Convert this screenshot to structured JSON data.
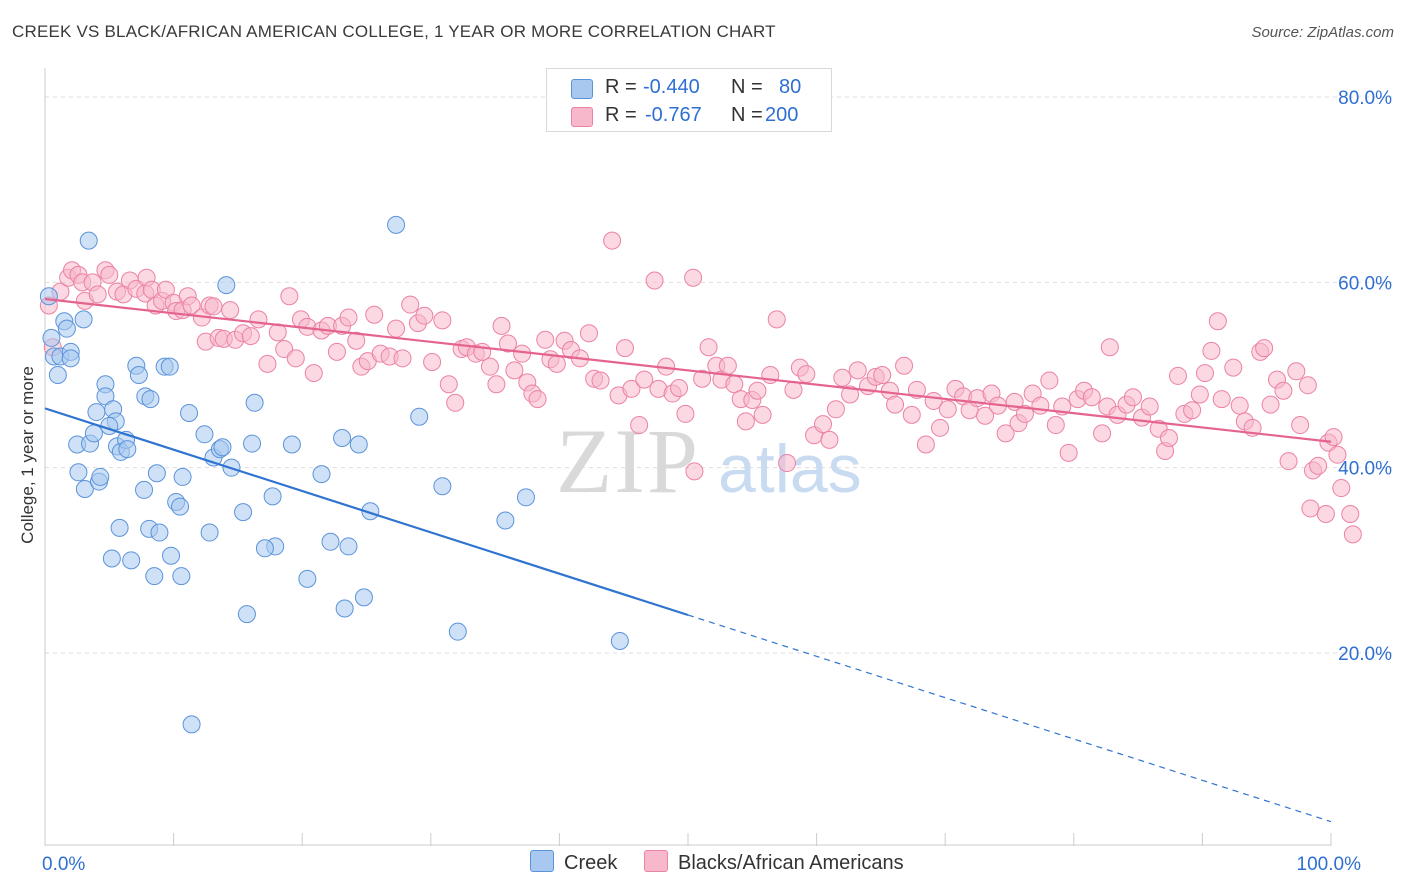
{
  "title": "CREEK VS BLACK/AFRICAN AMERICAN COLLEGE, 1 YEAR OR MORE CORRELATION CHART",
  "source": "Source: ZipAtlas.com",
  "watermark": {
    "zip": "ZIP",
    "atlas": "atlas"
  },
  "legend_top": [
    {
      "r_label": "R =",
      "r_value": "-0.440",
      "n_label": "N =",
      "n_value": "80"
    },
    {
      "r_label": "R =",
      "r_value": "-0.767",
      "n_label": "N =",
      "n_value": "200"
    }
  ],
  "legend_bottom": [
    "Creek",
    "Blacks/African Americans"
  ],
  "colors": {
    "creek_fill": "#a8c8f0",
    "creek_stroke": "#5b93d9",
    "creek_line": "#2f74d0",
    "black_fill": "#f7b8cb",
    "black_stroke": "#ec82a4",
    "black_line": "#e5638f",
    "tick_label": "#2f6fd1",
    "grid": "#dddddd"
  },
  "chart_data": {
    "type": "scatter",
    "title": "CREEK VS BLACK/AFRICAN AMERICAN COLLEGE, 1 YEAR OR MORE CORRELATION CHART",
    "xlabel": "",
    "ylabel": "College, 1 year or more",
    "xlim": [
      0,
      100
    ],
    "ylim": [
      0,
      85
    ],
    "x_ticks": [
      0,
      100
    ],
    "x_tick_labels": [
      "0.0%",
      "100.0%"
    ],
    "y_ticks": [
      20,
      40,
      60,
      80
    ],
    "y_tick_labels": [
      "20.0%",
      "40.0%",
      "60.0%",
      "80.0%"
    ],
    "grid": true,
    "legend": "top-center",
    "series": [
      {
        "name": "Creek",
        "r": -0.44,
        "n": 80,
        "trend": {
          "x0": 0,
          "y0": 46.4,
          "x1": 100,
          "y1": 1.8,
          "solid_until": 50
        },
        "points": [
          [
            0.3,
            58.5
          ],
          [
            0.5,
            54
          ],
          [
            0.7,
            52
          ],
          [
            1,
            50
          ],
          [
            1.2,
            52
          ],
          [
            1.5,
            55.8
          ],
          [
            1.7,
            55
          ],
          [
            2,
            52.5
          ],
          [
            2,
            51.8
          ],
          [
            3,
            56
          ],
          [
            3.4,
            64.5
          ],
          [
            2.5,
            42.5
          ],
          [
            2.6,
            39.5
          ],
          [
            3.1,
            37.7
          ],
          [
            3.5,
            42.6
          ],
          [
            3.8,
            43.7
          ],
          [
            4,
            46
          ],
          [
            4.2,
            38.5
          ],
          [
            4.3,
            39
          ],
          [
            4.7,
            49
          ],
          [
            4.7,
            47.7
          ],
          [
            5.3,
            46.3
          ],
          [
            5.5,
            45
          ],
          [
            5.6,
            42.3
          ],
          [
            5.8,
            33.5
          ],
          [
            5.9,
            41.7
          ],
          [
            6.3,
            43
          ],
          [
            6.4,
            42
          ],
          [
            5.2,
            30.2
          ],
          [
            6.7,
            30
          ],
          [
            7.1,
            51
          ],
          [
            7.3,
            50
          ],
          [
            7.7,
            37.6
          ],
          [
            7.8,
            47.7
          ],
          [
            8.1,
            33.4
          ],
          [
            8.2,
            47.4
          ],
          [
            8.5,
            28.3
          ],
          [
            8.7,
            39.4
          ],
          [
            8.9,
            33
          ],
          [
            9.3,
            50.9
          ],
          [
            9.7,
            50.9
          ],
          [
            9.8,
            30.5
          ],
          [
            10.2,
            36.3
          ],
          [
            10.5,
            35.8
          ],
          [
            10.6,
            28.3
          ],
          [
            10.7,
            39
          ],
          [
            11.2,
            45.9
          ],
          [
            11.4,
            12.3
          ],
          [
            12.4,
            43.6
          ],
          [
            12.8,
            33
          ],
          [
            13.1,
            41.1
          ],
          [
            13.6,
            42
          ],
          [
            13.8,
            42.2
          ],
          [
            14.1,
            59.7
          ],
          [
            14.5,
            40
          ],
          [
            15.4,
            35.2
          ],
          [
            15.7,
            24.2
          ],
          [
            16.1,
            42.6
          ],
          [
            16.3,
            47
          ],
          [
            17.7,
            36.9
          ],
          [
            17.9,
            31.5
          ],
          [
            17.1,
            31.3
          ],
          [
            19.2,
            42.5
          ],
          [
            20.4,
            28
          ],
          [
            21.5,
            39.3
          ],
          [
            22.2,
            32
          ],
          [
            23.3,
            24.8
          ],
          [
            23.1,
            43.2
          ],
          [
            23.6,
            31.5
          ],
          [
            24.4,
            42.5
          ],
          [
            25.3,
            35.3
          ],
          [
            24.8,
            26
          ],
          [
            27.3,
            66.2
          ],
          [
            29.1,
            45.5
          ],
          [
            30.9,
            38
          ],
          [
            32.1,
            22.3
          ],
          [
            35.8,
            34.3
          ],
          [
            37.4,
            36.8
          ],
          [
            44.7,
            21.3
          ],
          [
            5,
            44.5
          ]
        ]
      },
      {
        "name": "Blacks/African Americans",
        "r": -0.767,
        "n": 200,
        "trend": {
          "x0": 0,
          "y0": 58.2,
          "x1": 100,
          "y1": 42.8
        },
        "points": [
          [
            0.3,
            57.5
          ],
          [
            0.6,
            53
          ],
          [
            1.2,
            59
          ],
          [
            1.8,
            60.5
          ],
          [
            2.1,
            61.3
          ],
          [
            2.6,
            60.8
          ],
          [
            2.9,
            60
          ],
          [
            3.1,
            58
          ],
          [
            3.7,
            60
          ],
          [
            4.1,
            58.7
          ],
          [
            4.7,
            61.3
          ],
          [
            5,
            60.8
          ],
          [
            5.6,
            59
          ],
          [
            6.1,
            58.7
          ],
          [
            6.6,
            60.2
          ],
          [
            7.1,
            59.3
          ],
          [
            7.8,
            58.8
          ],
          [
            7.9,
            60.5
          ],
          [
            8.3,
            59.2
          ],
          [
            8.6,
            57.5
          ],
          [
            9.1,
            58
          ],
          [
            9.4,
            59.2
          ],
          [
            10,
            57.8
          ],
          [
            10.2,
            56.9
          ],
          [
            10.7,
            57
          ],
          [
            11.1,
            58.5
          ],
          [
            11.4,
            57.5
          ],
          [
            12.2,
            56.2
          ],
          [
            12.5,
            53.6
          ],
          [
            12.8,
            57.5
          ],
          [
            13.1,
            57.4
          ],
          [
            13.5,
            54
          ],
          [
            13.9,
            53.9
          ],
          [
            14.4,
            57
          ],
          [
            14.8,
            53.8
          ],
          [
            15.4,
            54.5
          ],
          [
            16,
            54.2
          ],
          [
            16.6,
            56
          ],
          [
            17.3,
            51.2
          ],
          [
            18.1,
            54.6
          ],
          [
            18.6,
            52.8
          ],
          [
            19,
            58.5
          ],
          [
            19.5,
            51.8
          ],
          [
            19.9,
            56
          ],
          [
            20.4,
            55.2
          ],
          [
            20.9,
            50.2
          ],
          [
            21.5,
            54.8
          ],
          [
            22,
            55.3
          ],
          [
            22.7,
            52.5
          ],
          [
            23.1,
            55.3
          ],
          [
            23.6,
            56.2
          ],
          [
            24.2,
            53.7
          ],
          [
            24.6,
            50.9
          ],
          [
            25.1,
            51.5
          ],
          [
            25.6,
            56.5
          ],
          [
            26.1,
            52.3
          ],
          [
            26.8,
            52
          ],
          [
            27.3,
            55
          ],
          [
            27.8,
            51.8
          ],
          [
            28.4,
            57.6
          ],
          [
            29,
            55.6
          ],
          [
            29.5,
            56.4
          ],
          [
            30.1,
            51.4
          ],
          [
            30.9,
            55.9
          ],
          [
            31.4,
            49
          ],
          [
            31.9,
            47
          ],
          [
            32.4,
            52.8
          ],
          [
            32.8,
            53
          ],
          [
            33.5,
            52.3
          ],
          [
            34,
            52.5
          ],
          [
            34.6,
            50.9
          ],
          [
            35.1,
            49
          ],
          [
            35.5,
            55.3
          ],
          [
            36,
            53.4
          ],
          [
            36.5,
            50.5
          ],
          [
            37.1,
            52.3
          ],
          [
            37.5,
            49.2
          ],
          [
            37.9,
            48
          ],
          [
            38.3,
            47.4
          ],
          [
            38.9,
            53.8
          ],
          [
            39.3,
            51.7
          ],
          [
            39.8,
            51.2
          ],
          [
            40.4,
            53.7
          ],
          [
            40.9,
            52.7
          ],
          [
            41.6,
            51.8
          ],
          [
            42.3,
            54.5
          ],
          [
            42.7,
            49.6
          ],
          [
            43.2,
            49.4
          ],
          [
            44.1,
            64.5
          ],
          [
            44.6,
            47.8
          ],
          [
            45.1,
            52.9
          ],
          [
            45.6,
            48.5
          ],
          [
            46.2,
            44.6
          ],
          [
            46.6,
            49.5
          ],
          [
            47.4,
            60.2
          ],
          [
            47.7,
            48.5
          ],
          [
            48.3,
            50.9
          ],
          [
            48.8,
            48
          ],
          [
            49.3,
            48.6
          ],
          [
            49.8,
            45.8
          ],
          [
            50.5,
            39.6
          ],
          [
            50.4,
            60.5
          ],
          [
            51.1,
            49.6
          ],
          [
            51.6,
            53
          ],
          [
            52.2,
            51
          ],
          [
            52.6,
            49.5
          ],
          [
            53.1,
            51
          ],
          [
            53.6,
            49
          ],
          [
            54.1,
            47.4
          ],
          [
            54.5,
            45
          ],
          [
            55,
            47.3
          ],
          [
            55.4,
            48.3
          ],
          [
            55.8,
            45.7
          ],
          [
            56.4,
            50
          ],
          [
            56.9,
            56
          ],
          [
            57.7,
            40.5
          ],
          [
            58.2,
            48.4
          ],
          [
            58.7,
            50.8
          ],
          [
            59.2,
            50.1
          ],
          [
            59.8,
            43.5
          ],
          [
            60.5,
            44.7
          ],
          [
            61,
            43
          ],
          [
            61.5,
            46.3
          ],
          [
            62,
            49.7
          ],
          [
            62.6,
            47.9
          ],
          [
            63.2,
            50.5
          ],
          [
            64,
            48.8
          ],
          [
            64.6,
            49.8
          ],
          [
            65.1,
            50
          ],
          [
            65.7,
            48.3
          ],
          [
            66.1,
            46.8
          ],
          [
            66.8,
            51
          ],
          [
            67.4,
            45.7
          ],
          [
            67.8,
            48.4
          ],
          [
            68.5,
            42.5
          ],
          [
            69.1,
            47.2
          ],
          [
            69.6,
            44.3
          ],
          [
            70.2,
            46.3
          ],
          [
            70.8,
            48.5
          ],
          [
            71.4,
            47.7
          ],
          [
            71.9,
            46.2
          ],
          [
            72.5,
            47.5
          ],
          [
            73.1,
            45.6
          ],
          [
            73.6,
            48
          ],
          [
            74.1,
            46.7
          ],
          [
            74.7,
            43.7
          ],
          [
            75.4,
            47.1
          ],
          [
            75.7,
            44.8
          ],
          [
            76.2,
            45.8
          ],
          [
            76.8,
            48
          ],
          [
            77.4,
            46.7
          ],
          [
            78.1,
            49.4
          ],
          [
            78.6,
            44.6
          ],
          [
            79.1,
            46.6
          ],
          [
            79.6,
            41.6
          ],
          [
            80.3,
            47.4
          ],
          [
            80.8,
            48.3
          ],
          [
            81.4,
            47.6
          ],
          [
            82.2,
            43.7
          ],
          [
            82.6,
            46.6
          ],
          [
            82.8,
            53
          ],
          [
            83.4,
            45.7
          ],
          [
            84.1,
            46.8
          ],
          [
            84.6,
            47.6
          ],
          [
            85.3,
            45.4
          ],
          [
            85.9,
            46.6
          ],
          [
            86.6,
            44.2
          ],
          [
            87.1,
            41.8
          ],
          [
            87.4,
            43.2
          ],
          [
            88.1,
            49.9
          ],
          [
            88.6,
            45.8
          ],
          [
            89.2,
            46.2
          ],
          [
            89.8,
            47.9
          ],
          [
            90.2,
            50.2
          ],
          [
            90.7,
            52.6
          ],
          [
            91.2,
            55.8
          ],
          [
            91.5,
            47.4
          ],
          [
            92.4,
            50.8
          ],
          [
            92.9,
            46.7
          ],
          [
            93.3,
            45
          ],
          [
            93.9,
            44.3
          ],
          [
            94.5,
            52.5
          ],
          [
            94.8,
            52.9
          ],
          [
            95.3,
            46.8
          ],
          [
            95.8,
            49.5
          ],
          [
            96.3,
            48.3
          ],
          [
            96.7,
            40.7
          ],
          [
            97.3,
            50.4
          ],
          [
            97.6,
            44.6
          ],
          [
            98.2,
            48.9
          ],
          [
            98.4,
            35.6
          ],
          [
            98.6,
            39.7
          ],
          [
            99,
            40.2
          ],
          [
            99.6,
            35
          ],
          [
            99.8,
            42.7
          ],
          [
            100.2,
            43.3
          ],
          [
            100.5,
            41.4
          ],
          [
            100.8,
            37.8
          ],
          [
            101.5,
            35
          ],
          [
            101.7,
            32.8
          ]
        ]
      }
    ]
  }
}
